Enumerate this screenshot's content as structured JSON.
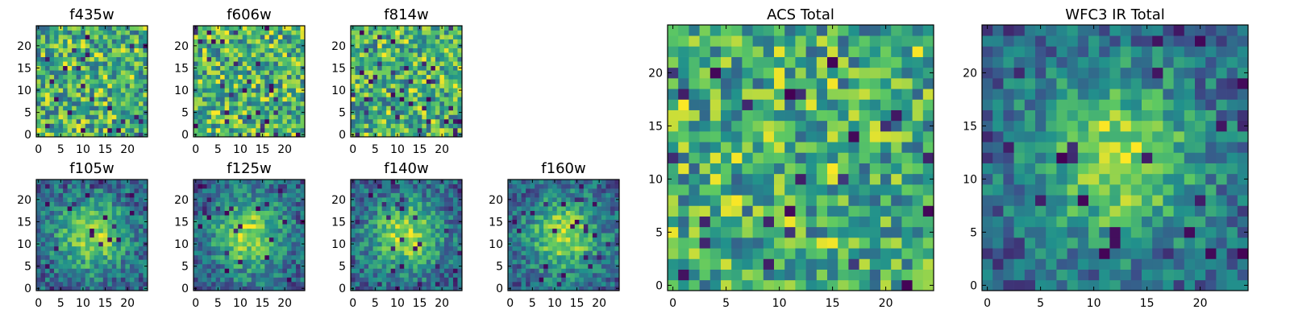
{
  "figure": {
    "colormap": "viridis",
    "colormap_stops": [
      "#440154",
      "#3b528b",
      "#21918c",
      "#5ec962",
      "#fde725"
    ]
  },
  "chart_data": [
    {
      "id": "f435w",
      "type": "heatmap",
      "title": "f435w",
      "grid_size": 25,
      "xlim": [
        0,
        24
      ],
      "ylim": [
        0,
        24
      ],
      "xticks": [
        0,
        5,
        10,
        15,
        20
      ],
      "yticks": [
        0,
        5,
        10,
        15,
        20
      ],
      "xtick_labels": [
        "0",
        "5",
        "10",
        "15",
        "20"
      ],
      "ytick_labels": [
        "0",
        "5",
        "10",
        "15",
        "20"
      ],
      "pattern": "noise"
    },
    {
      "id": "f606w",
      "type": "heatmap",
      "title": "f606w",
      "grid_size": 25,
      "xlim": [
        0,
        24
      ],
      "ylim": [
        0,
        24
      ],
      "xticks": [
        0,
        5,
        10,
        15,
        20
      ],
      "yticks": [
        0,
        5,
        10,
        15,
        20
      ],
      "xtick_labels": [
        "0",
        "5",
        "10",
        "15",
        "20"
      ],
      "ytick_labels": [
        "0",
        "5",
        "10",
        "15",
        "20"
      ],
      "pattern": "noise"
    },
    {
      "id": "f814w",
      "type": "heatmap",
      "title": "f814w",
      "grid_size": 25,
      "xlim": [
        0,
        24
      ],
      "ylim": [
        0,
        24
      ],
      "xticks": [
        0,
        5,
        10,
        15,
        20
      ],
      "yticks": [
        0,
        5,
        10,
        15,
        20
      ],
      "xtick_labels": [
        "0",
        "5",
        "10",
        "15",
        "20"
      ],
      "ytick_labels": [
        "0",
        "5",
        "10",
        "15",
        "20"
      ],
      "pattern": "noise"
    },
    {
      "id": "f105w",
      "type": "heatmap",
      "title": "f105w",
      "grid_size": 25,
      "xlim": [
        0,
        24
      ],
      "ylim": [
        0,
        24
      ],
      "xticks": [
        0,
        5,
        10,
        15,
        20
      ],
      "yticks": [
        0,
        5,
        10,
        15,
        20
      ],
      "xtick_labels": [
        "0",
        "5",
        "10",
        "15",
        "20"
      ],
      "ytick_labels": [
        "0",
        "5",
        "10",
        "15",
        "20"
      ],
      "pattern": "source",
      "source_center": [
        12,
        12
      ]
    },
    {
      "id": "f125w",
      "type": "heatmap",
      "title": "f125w",
      "grid_size": 25,
      "xlim": [
        0,
        24
      ],
      "ylim": [
        0,
        24
      ],
      "xticks": [
        0,
        5,
        10,
        15,
        20
      ],
      "yticks": [
        0,
        5,
        10,
        15,
        20
      ],
      "xtick_labels": [
        "0",
        "5",
        "10",
        "15",
        "20"
      ],
      "ytick_labels": [
        "0",
        "5",
        "10",
        "15",
        "20"
      ],
      "pattern": "source",
      "source_center": [
        12,
        12
      ]
    },
    {
      "id": "f140w",
      "type": "heatmap",
      "title": "f140w",
      "grid_size": 25,
      "xlim": [
        0,
        24
      ],
      "ylim": [
        0,
        24
      ],
      "xticks": [
        0,
        5,
        10,
        15,
        20
      ],
      "yticks": [
        0,
        5,
        10,
        15,
        20
      ],
      "xtick_labels": [
        "0",
        "5",
        "10",
        "15",
        "20"
      ],
      "ytick_labels": [
        "0",
        "5",
        "10",
        "15",
        "20"
      ],
      "pattern": "source",
      "source_center": [
        12,
        12
      ]
    },
    {
      "id": "f160w",
      "type": "heatmap",
      "title": "f160w",
      "grid_size": 25,
      "xlim": [
        0,
        24
      ],
      "ylim": [
        0,
        24
      ],
      "xticks": [
        0,
        5,
        10,
        15,
        20
      ],
      "yticks": [
        0,
        5,
        10,
        15,
        20
      ],
      "xtick_labels": [
        "0",
        "5",
        "10",
        "15",
        "20"
      ],
      "ytick_labels": [
        "0",
        "5",
        "10",
        "15",
        "20"
      ],
      "pattern": "source",
      "source_center": [
        12,
        12
      ]
    },
    {
      "id": "acs-total",
      "type": "heatmap",
      "title": "ACS Total",
      "grid_size": 25,
      "xlim": [
        0,
        24
      ],
      "ylim": [
        0,
        24
      ],
      "xticks": [
        0,
        5,
        10,
        15,
        20
      ],
      "yticks": [
        0,
        5,
        10,
        15,
        20
      ],
      "xtick_labels": [
        "0",
        "5",
        "10",
        "15",
        "20"
      ],
      "ytick_labels": [
        "0",
        "5",
        "10",
        "15",
        "20"
      ],
      "pattern": "noise"
    },
    {
      "id": "wfc3-ir-total",
      "type": "heatmap",
      "title": "WFC3 IR Total",
      "grid_size": 25,
      "xlim": [
        0,
        24
      ],
      "ylim": [
        0,
        24
      ],
      "xticks": [
        0,
        5,
        10,
        15,
        20
      ],
      "yticks": [
        0,
        5,
        10,
        15,
        20
      ],
      "xtick_labels": [
        "0",
        "5",
        "10",
        "15",
        "20"
      ],
      "ytick_labels": [
        "0",
        "5",
        "10",
        "15",
        "20"
      ],
      "pattern": "source",
      "source_center": [
        12,
        12
      ]
    }
  ]
}
